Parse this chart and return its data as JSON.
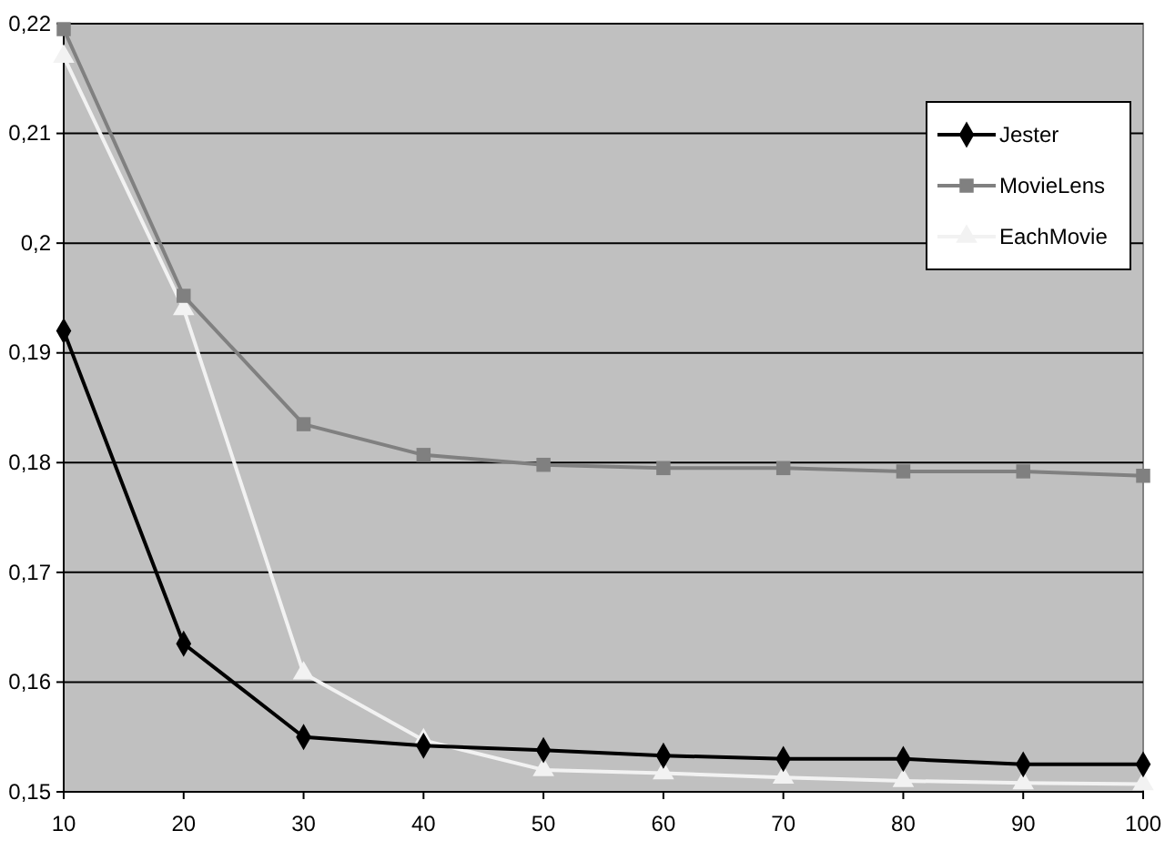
{
  "chart_data": {
    "type": "line",
    "x": [
      10,
      20,
      30,
      40,
      50,
      60,
      70,
      80,
      90,
      100
    ],
    "xlim": [
      10,
      100
    ],
    "xticks": [
      10,
      20,
      30,
      40,
      50,
      60,
      70,
      80,
      90,
      100
    ],
    "ylim": [
      0.15,
      0.22
    ],
    "yticks": [
      {
        "value": 0.15,
        "label": "0,15"
      },
      {
        "value": 0.16,
        "label": "0,16"
      },
      {
        "value": 0.17,
        "label": "0,17"
      },
      {
        "value": 0.18,
        "label": "0,18"
      },
      {
        "value": 0.19,
        "label": "0,19"
      },
      {
        "value": 0.2,
        "label": "0,2"
      },
      {
        "value": 0.21,
        "label": "0,21"
      },
      {
        "value": 0.22,
        "label": "0,22"
      }
    ],
    "grid": "y",
    "legend": "top right",
    "series": [
      {
        "name": "Jester",
        "color": "#000000",
        "marker": "diamond",
        "values": [
          0.192,
          0.1635,
          0.155,
          0.1542,
          0.1538,
          0.1533,
          0.153,
          0.153,
          0.1525,
          0.1525
        ]
      },
      {
        "name": "MovieLens",
        "color": "#808080",
        "marker": "square",
        "values": [
          0.2195,
          0.1952,
          0.1835,
          0.1807,
          0.1798,
          0.1795,
          0.1795,
          0.1792,
          0.1792,
          0.1788
        ]
      },
      {
        "name": "EachMovie",
        "color": "#f2f2f2",
        "marker": "triangle",
        "values": [
          0.217,
          0.194,
          0.1608,
          0.1547,
          0.152,
          0.1517,
          0.1513,
          0.151,
          0.1508,
          0.1507
        ]
      }
    ]
  }
}
